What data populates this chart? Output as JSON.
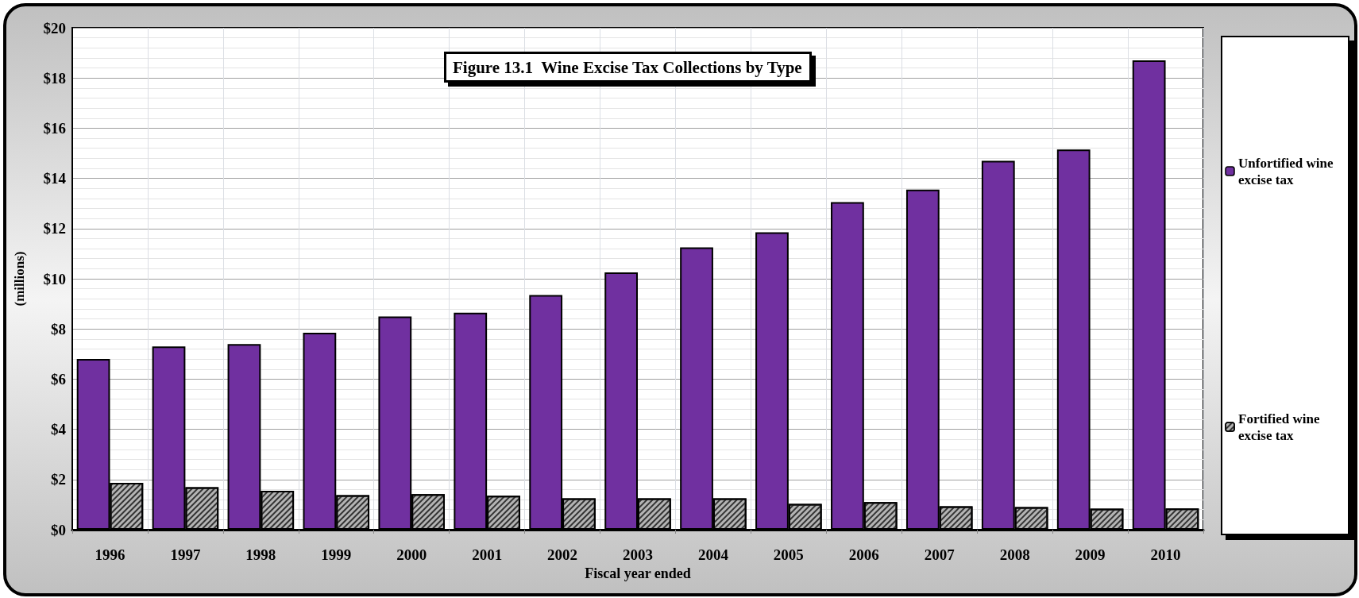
{
  "chart_data": {
    "type": "bar",
    "title": "Figure 13.1  Wine Excise Tax Collections by Type",
    "xlabel": "Fiscal year ended",
    "ylabel": "(millions)",
    "categories": [
      "1996",
      "1997",
      "1998",
      "1999",
      "2000",
      "2001",
      "2002",
      "2003",
      "2004",
      "2005",
      "2006",
      "2007",
      "2008",
      "2009",
      "2010"
    ],
    "series": [
      {
        "name": "Unfortified wine excise tax",
        "color": "#7030a0",
        "values": [
          6.8,
          7.3,
          7.4,
          7.85,
          8.5,
          8.65,
          9.35,
          10.25,
          11.25,
          11.85,
          13.05,
          13.55,
          14.7,
          15.15,
          18.7
        ]
      },
      {
        "name": "Fortified wine excise tax",
        "color": "#b4b4b4",
        "values": [
          1.87,
          1.69,
          1.55,
          1.38,
          1.42,
          1.35,
          1.25,
          1.25,
          1.25,
          1.03,
          1.1,
          0.93,
          0.9,
          0.84,
          0.85
        ]
      }
    ],
    "ylim": [
      0,
      20
    ],
    "yticks": [
      {
        "value": 0,
        "label": "$0"
      },
      {
        "value": 2,
        "label": "$2"
      },
      {
        "value": 4,
        "label": "$4"
      },
      {
        "value": 6,
        "label": "$6"
      },
      {
        "value": 8,
        "label": "$8"
      },
      {
        "value": 10,
        "label": "$10"
      },
      {
        "value": 12,
        "label": "$12"
      },
      {
        "value": 14,
        "label": "$14"
      },
      {
        "value": 16,
        "label": "$16"
      },
      {
        "value": 18,
        "label": "$18"
      },
      {
        "value": 20,
        "label": "$20"
      }
    ],
    "grid": true,
    "legend": "right"
  }
}
